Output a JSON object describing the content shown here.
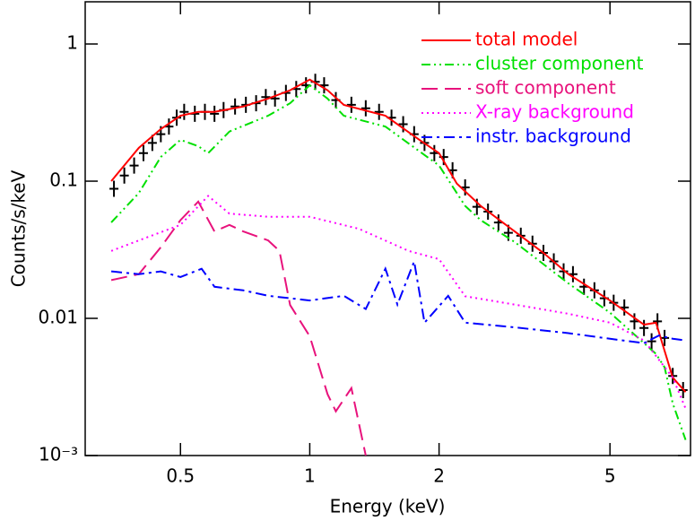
{
  "chart_data": {
    "type": "line",
    "xlabel": "Energy (keV)",
    "ylabel": "Counts/s/keV",
    "xscale": "log",
    "yscale": "log",
    "xlim": [
      0.3,
      7.7
    ],
    "ylim": [
      0.001,
      2.03
    ],
    "xticks": [
      0.5,
      1,
      2,
      5
    ],
    "yticks": [
      {
        "value": 0.001,
        "label": "10⁻³"
      },
      0.01,
      0.1,
      1
    ],
    "legend": "upper right",
    "points": {
      "color": "#000000",
      "x": [
        0.35,
        0.37,
        0.39,
        0.41,
        0.43,
        0.45,
        0.47,
        0.49,
        0.51,
        0.54,
        0.57,
        0.6,
        0.63,
        0.67,
        0.71,
        0.75,
        0.79,
        0.83,
        0.88,
        0.93,
        0.98,
        1.03,
        1.08,
        1.15,
        1.25,
        1.35,
        1.45,
        1.55,
        1.65,
        1.75,
        1.85,
        1.95,
        2.05,
        2.15,
        2.3,
        2.45,
        2.6,
        2.75,
        2.9,
        3.1,
        3.3,
        3.5,
        3.7,
        3.9,
        4.1,
        4.35,
        4.6,
        4.85,
        5.1,
        5.4,
        5.7,
        6.0,
        6.25,
        6.45,
        6.7,
        7.0,
        7.4
      ],
      "values": [
        0.088,
        0.11,
        0.13,
        0.16,
        0.19,
        0.22,
        0.25,
        0.29,
        0.32,
        0.31,
        0.32,
        0.31,
        0.33,
        0.35,
        0.36,
        0.37,
        0.41,
        0.4,
        0.44,
        0.47,
        0.5,
        0.53,
        0.5,
        0.39,
        0.36,
        0.34,
        0.32,
        0.29,
        0.26,
        0.22,
        0.19,
        0.16,
        0.15,
        0.12,
        0.09,
        0.065,
        0.06,
        0.05,
        0.042,
        0.04,
        0.035,
        0.03,
        0.026,
        0.022,
        0.021,
        0.017,
        0.016,
        0.014,
        0.013,
        0.012,
        0.0095,
        0.0085,
        0.0068,
        0.0095,
        0.0072,
        0.0038,
        0.003
      ]
    },
    "series": [
      {
        "name": "total model",
        "color": "#ff0000",
        "linestyle": "solid",
        "x": [
          0.345,
          0.4,
          0.45,
          0.5,
          0.55,
          0.6,
          0.7,
          0.8,
          0.9,
          1.0,
          1.1,
          1.2,
          1.5,
          1.8,
          2.0,
          2.2,
          2.5,
          3.0,
          3.5,
          4.0,
          5.0,
          6.0,
          6.4,
          7.0,
          7.5
        ],
        "values": [
          0.1,
          0.175,
          0.24,
          0.3,
          0.32,
          0.32,
          0.35,
          0.4,
          0.46,
          0.55,
          0.46,
          0.36,
          0.3,
          0.2,
          0.16,
          0.096,
          0.066,
          0.043,
          0.03,
          0.021,
          0.0135,
          0.009,
          0.0093,
          0.0037,
          0.0029
        ]
      },
      {
        "name": "cluster component",
        "color": "#00e000",
        "linestyle": "dash-dot-dot",
        "x": [
          0.345,
          0.4,
          0.45,
          0.5,
          0.55,
          0.58,
          0.65,
          0.8,
          0.9,
          1.0,
          1.1,
          1.2,
          1.5,
          2.0,
          2.3,
          2.5,
          3.0,
          4.0,
          5.0,
          6.0,
          6.4,
          6.7,
          7.0,
          7.5
        ],
        "values": [
          0.05,
          0.082,
          0.15,
          0.2,
          0.18,
          0.16,
          0.23,
          0.3,
          0.37,
          0.5,
          0.4,
          0.3,
          0.25,
          0.13,
          0.066,
          0.052,
          0.036,
          0.018,
          0.011,
          0.0066,
          0.0055,
          0.0044,
          0.0024,
          0.0013
        ]
      },
      {
        "name": "soft component",
        "color": "#e8127c",
        "linestyle": "dashed",
        "x": [
          0.345,
          0.4,
          0.45,
          0.5,
          0.55,
          0.6,
          0.65,
          0.7,
          0.8,
          0.85,
          0.9,
          1.0,
          1.1,
          1.15,
          1.25,
          1.35
        ],
        "values": [
          0.019,
          0.021,
          0.033,
          0.052,
          0.071,
          0.043,
          0.048,
          0.043,
          0.037,
          0.031,
          0.0125,
          0.0074,
          0.0028,
          0.0021,
          0.0031,
          0.001
        ]
      },
      {
        "name": "X-ray background",
        "color": "#ff00ff",
        "linestyle": "dotted",
        "x": [
          0.345,
          0.4,
          0.5,
          0.58,
          0.65,
          0.8,
          1.0,
          1.3,
          1.7,
          2.0,
          2.3,
          3.0,
          4.0,
          5.0,
          6.0,
          7.0,
          7.5
        ],
        "values": [
          0.031,
          0.037,
          0.048,
          0.078,
          0.058,
          0.055,
          0.055,
          0.045,
          0.031,
          0.027,
          0.0145,
          0.0126,
          0.0108,
          0.0093,
          0.0069,
          0.0037,
          0.0022
        ]
      },
      {
        "name": "instr. background",
        "color": "#0000ff",
        "linestyle": "dash-dot",
        "x": [
          0.345,
          0.4,
          0.45,
          0.5,
          0.56,
          0.6,
          0.7,
          0.8,
          1.0,
          1.2,
          1.35,
          1.5,
          1.6,
          1.75,
          1.85,
          2.1,
          2.3,
          3.0,
          4.0,
          5.0,
          6.0,
          6.5,
          7.0,
          7.5
        ],
        "values": [
          0.022,
          0.021,
          0.022,
          0.02,
          0.023,
          0.017,
          0.016,
          0.0146,
          0.0135,
          0.0146,
          0.0117,
          0.023,
          0.0126,
          0.026,
          0.0093,
          0.0146,
          0.0093,
          0.0086,
          0.0078,
          0.0071,
          0.0066,
          0.0075,
          0.0071,
          0.0069
        ]
      }
    ]
  }
}
